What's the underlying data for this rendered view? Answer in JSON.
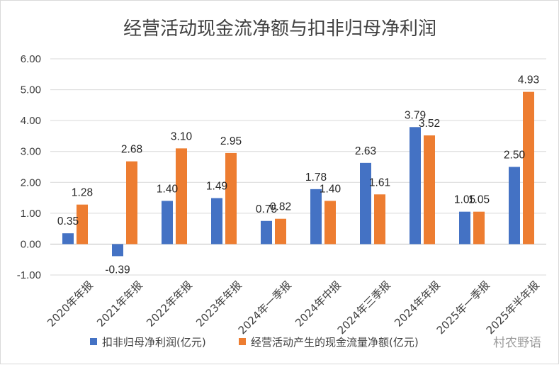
{
  "chart_data": {
    "type": "bar",
    "title": "经营活动现金流净额与扣非归母净利润",
    "categories": [
      "2020年年报",
      "2021年年报",
      "2022年年报",
      "2023年年报",
      "2024年一季报",
      "2024年中报",
      "2024年三季报",
      "2024年年报",
      "2025年一季报",
      "2025年半年报"
    ],
    "series": [
      {
        "name": "扣非归母净利润(亿元)",
        "color": "#4472C4",
        "values": [
          0.35,
          -0.39,
          1.4,
          1.49,
          0.75,
          1.78,
          2.63,
          3.79,
          1.05,
          2.5
        ],
        "labels": [
          "0.35",
          "-0.39",
          "1.40",
          "1.49",
          "0.75",
          "1.78",
          "2.63",
          "3.79",
          "1.05",
          "2.50"
        ]
      },
      {
        "name": "经营活动产生的现金流量净额(亿元)",
        "color": "#ED7D31",
        "values": [
          1.28,
          2.68,
          3.1,
          2.95,
          0.82,
          1.4,
          1.61,
          3.52,
          1.05,
          4.93
        ],
        "labels": [
          "1.28",
          "2.68",
          "3.10",
          "2.95",
          "0.82",
          "1.40",
          "1.61",
          "3.52",
          "1.05",
          "4.93"
        ]
      }
    ],
    "ylim": [
      -1,
      6
    ],
    "yticks": [
      "-1.00",
      "0.00",
      "1.00",
      "2.00",
      "3.00",
      "4.00",
      "5.00",
      "6.00"
    ],
    "grid": true,
    "legend_position": "bottom"
  },
  "watermark": "村农野语"
}
